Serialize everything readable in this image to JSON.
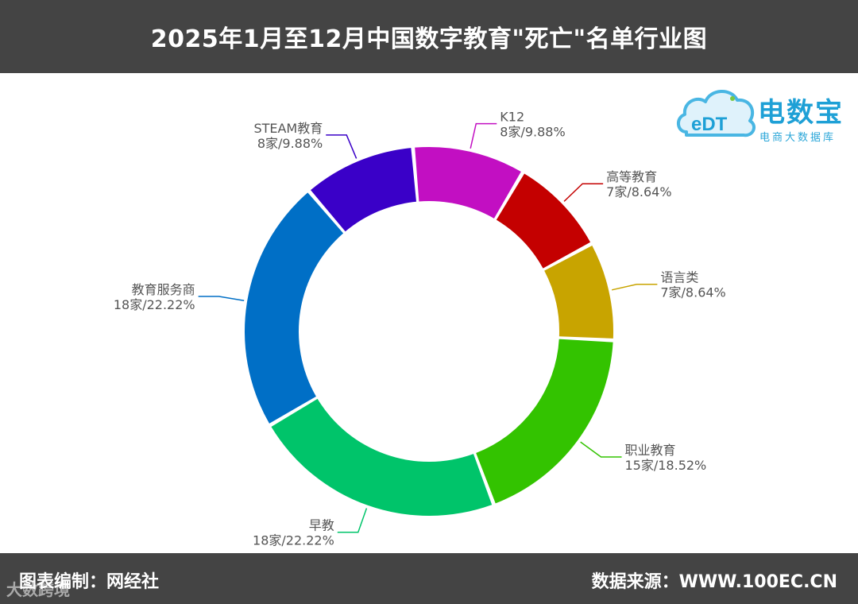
{
  "header": {
    "title": "2025年1月至12月中国数字教育\"死亡\"名单行业图"
  },
  "footer": {
    "left": "图表编制：网经社",
    "right": "数据来源：WWW.100EC.CN",
    "watermark": "大数跨境"
  },
  "logo": {
    "name": "电数宝",
    "subtitle": "电商大数据库",
    "mark": "eDT"
  },
  "chart_data": {
    "type": "pie",
    "donut": true,
    "title": "2025年1月至12月中国数字教育\"死亡\"名单行业图",
    "legend": "none",
    "slices": [
      {
        "category": "K12",
        "count": 8,
        "percent": 9.88,
        "label": "8家/9.88%",
        "color": "#c20fc2"
      },
      {
        "category": "高等教育",
        "count": 7,
        "percent": 8.64,
        "label": "7家/8.64%",
        "color": "#c40000"
      },
      {
        "category": "语言类",
        "count": 7,
        "percent": 8.64,
        "label": "7家/8.64%",
        "color": "#c8a400"
      },
      {
        "category": "职业教育",
        "count": 15,
        "percent": 18.52,
        "label": "15家/18.52%",
        "color": "#33c300"
      },
      {
        "category": "早教",
        "count": 18,
        "percent": 22.22,
        "label": "18家/22.22%",
        "color": "#00c46a"
      },
      {
        "category": "教育服务商",
        "count": 18,
        "percent": 22.22,
        "label": "18家/22.22%",
        "color": "#006fc6"
      },
      {
        "category": "STEAM教育",
        "count": 8,
        "percent": 9.88,
        "label": "8家/9.88%",
        "color": "#3a00c8"
      }
    ]
  }
}
